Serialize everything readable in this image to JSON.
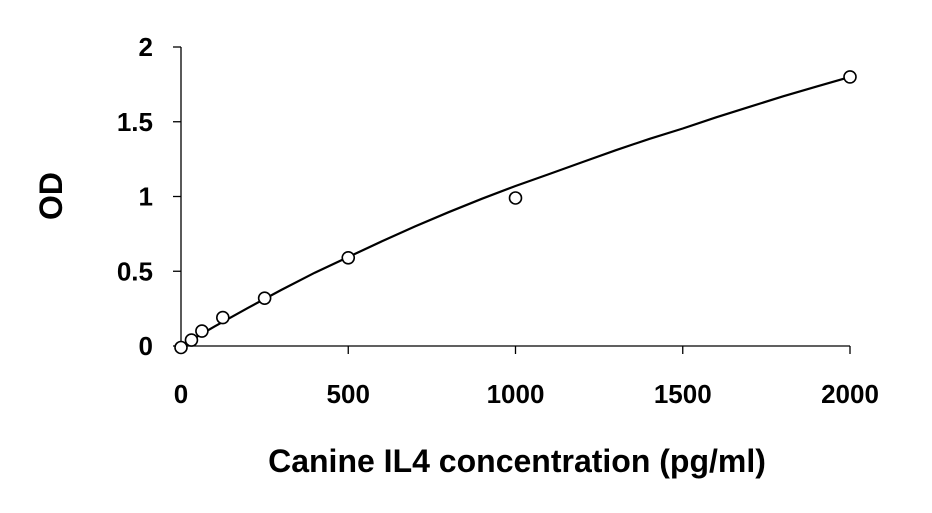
{
  "chart_data": {
    "type": "scatter",
    "title": "",
    "xlabel": "Canine IL4 concentration (pg/ml)",
    "ylabel": "OD",
    "xlim": [
      0,
      2000
    ],
    "ylim": [
      0,
      2
    ],
    "xticks": [
      0,
      500,
      1000,
      1500,
      2000
    ],
    "yticks": [
      0,
      0.5,
      1,
      1.5,
      2
    ],
    "xtick_labels": [
      "0",
      "500",
      "1000",
      "1500",
      "2000"
    ],
    "ytick_labels": [
      "0",
      "0.5",
      "1",
      "1.5",
      "2"
    ],
    "grid": false,
    "legend": "none",
    "series": [
      {
        "points": [
          {
            "x": 0,
            "y": -0.01
          },
          {
            "x": 31.25,
            "y": 0.04
          },
          {
            "x": 62.5,
            "y": 0.1
          },
          {
            "x": 125,
            "y": 0.19
          },
          {
            "x": 250,
            "y": 0.32
          },
          {
            "x": 500,
            "y": 0.59
          },
          {
            "x": 1000,
            "y": 0.99
          },
          {
            "x": 2000,
            "y": 1.8
          }
        ],
        "marker": "open-circle"
      }
    ],
    "fit_curve": {
      "type": "polynomial",
      "x": [
        0,
        100,
        200,
        300,
        400,
        500,
        600,
        700,
        800,
        900,
        1000,
        1100,
        1200,
        1300,
        1400,
        1500,
        1600,
        1700,
        1800,
        1900,
        2000
      ],
      "y": [
        0,
        0.13,
        0.255,
        0.375,
        0.49,
        0.595,
        0.7,
        0.8,
        0.895,
        0.985,
        1.07,
        1.15,
        1.23,
        1.31,
        1.385,
        1.455,
        1.53,
        1.6,
        1.67,
        1.735,
        1.8
      ]
    }
  }
}
